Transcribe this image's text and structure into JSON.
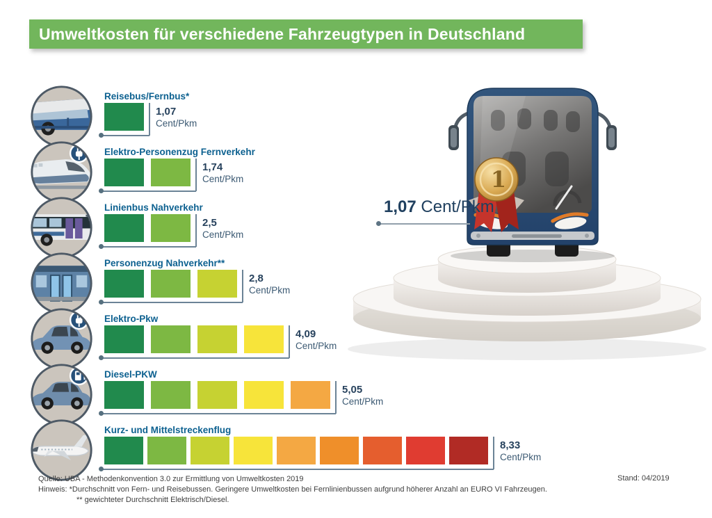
{
  "title": "Umweltkosten für verschiedene Fahrzeugtypen in Deutschland",
  "unit": "Cent/Pkm",
  "colors": {
    "banner_green": "#72b65c",
    "label_blue": "#0d6190",
    "value_navy": "#27425d",
    "connector_gray": "#6b8396",
    "icon_circle_bg": "#cbc5bd",
    "icon_circle_ring": "#4e5a66",
    "bus_body_blue": "#2a4a71",
    "palette": [
      "#218a4d",
      "#7db843",
      "#c6d232",
      "#f7e43a",
      "#f4a843",
      "#ef8f2a",
      "#e55e2e",
      "#e03c31",
      "#b12b25"
    ]
  },
  "chart_data": {
    "type": "bar",
    "title": "Umweltkosten für verschiedene Fahrzeugtypen in Deutschland",
    "unit": "Cent/Pkm",
    "categories": [
      "Reisebus/Fernbus*",
      "Elektro-Personenzug Fernverkehr",
      "Linienbus Nahverkehr",
      "Personenzug Nahverkehr**",
      "Elektro-Pkw",
      "Diesel-PKW",
      "Kurz- und Mittelstreckenflug"
    ],
    "values": [
      1.07,
      1.74,
      2.5,
      2.8,
      4.09,
      5.05,
      8.33
    ],
    "value_labels": [
      "1,07",
      "1,74",
      "2,5",
      "2,8",
      "4,09",
      "5,05",
      "8,33"
    ],
    "segments": [
      1,
      2,
      2,
      3,
      4,
      5,
      9
    ],
    "icons": [
      "coach-bus",
      "electric-train",
      "city-bus",
      "regional-train",
      "electric-car",
      "diesel-car",
      "airplane"
    ],
    "xlim": [
      0,
      9
    ],
    "legend": "none",
    "grid": false
  },
  "highlight": {
    "value": "1,07",
    "unit": "Cent/Pkm",
    "medal_rank": "1"
  },
  "footer": {
    "source": "Quelle: UBA - Methodenkonvention 3.0 zur Ermittlung von Umweltkosten 2019",
    "note1": "Hinweis: *Durchschnitt von Fern- und Reisebussen. Geringere Umweltkosten bei Fernlinienbussen aufgrund höherer Anzahl an EURO VI Fahrzeugen.",
    "note2": "** gewichteter Durchschnitt Elektrisch/Diesel.",
    "stand": "Stand: 04/2019"
  }
}
